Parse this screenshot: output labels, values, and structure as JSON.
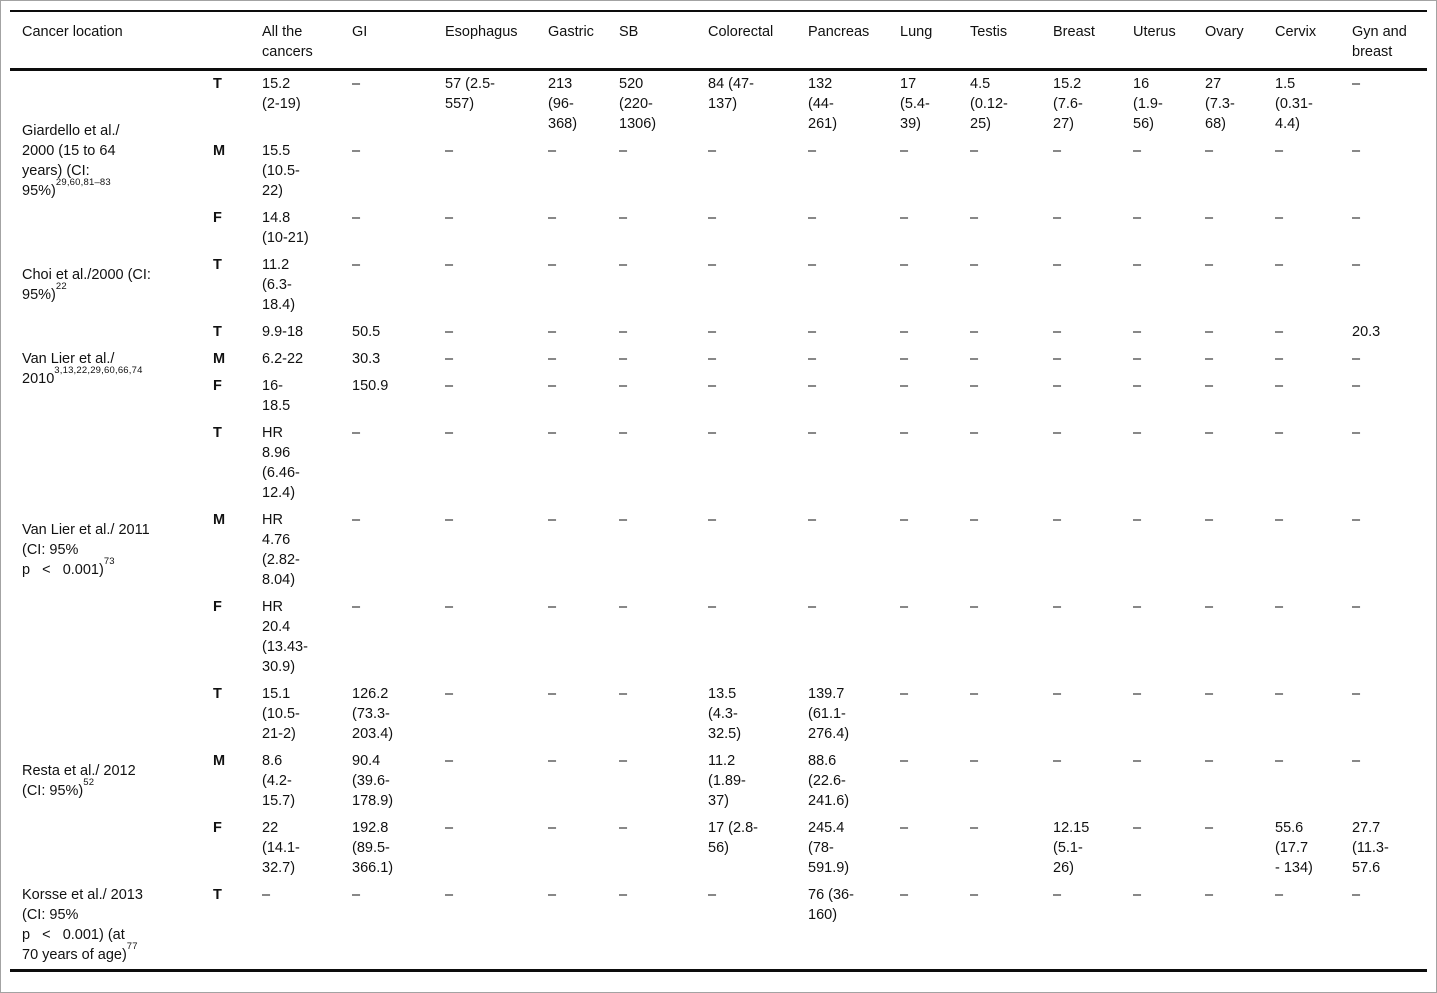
{
  "table": {
    "corner_header": "Cancer location",
    "columns": [
      "All the cancers",
      "GI",
      "Esophagus",
      "Gastric",
      "SB",
      "Colorectal",
      "Pancreas",
      "Lung",
      "Testis",
      "Breast",
      "Uterus",
      "Ovary",
      "Cervix",
      "Gyn and breast"
    ],
    "groups": [
      {
        "label_lines": [
          "Giardello et al./",
          "2000 (15 to 64",
          "years) (CI:",
          "95%)"
        ],
        "sup": "29,60,81–83",
        "rows": [
          {
            "sex": "T",
            "values": [
              "15.2 (2-19)",
              "–",
              "57 (2.5-557)",
              "213 (96-368)",
              "520 (220-1306)",
              "84 (47-137)",
              "132 (44-261)",
              "17 (5.4-39)",
              "4.5 (0.12-25)",
              "15.2 (7.6-27)",
              "16 (1.9-56)",
              "27 (7.3-68)",
              "1.5 (0.31-4.4)",
              "–"
            ]
          },
          {
            "sex": "M",
            "values": [
              "15.5 (10.5-22)",
              "–",
              "–",
              "–",
              "–",
              "–",
              "–",
              "–",
              "–",
              "–",
              "–",
              "–",
              "–",
              "–"
            ]
          },
          {
            "sex": "F",
            "values": [
              "14.8 (10-21)",
              "–",
              "–",
              "–",
              "–",
              "–",
              "–",
              "–",
              "–",
              "–",
              "–",
              "–",
              "–",
              "–"
            ]
          }
        ]
      },
      {
        "label_lines": [
          "Choi et al./2000 (CI:",
          "95%)"
        ],
        "sup": "22",
        "rows": [
          {
            "sex": "T",
            "values": [
              "11.2 (6.3-18.4)",
              "–",
              "–",
              "–",
              "–",
              "–",
              "–",
              "–",
              "–",
              "–",
              "–",
              "–",
              "–",
              "–"
            ]
          }
        ]
      },
      {
        "label_lines": [
          "Van Lier et al./",
          "2010"
        ],
        "sup": "3,13,22,29,60,66,74",
        "rows": [
          {
            "sex": "T",
            "values": [
              "9.9-18",
              "50.5",
              "–",
              "–",
              "–",
              "–",
              "–",
              "–",
              "–",
              "–",
              "–",
              "–",
              "–",
              "20.3"
            ]
          },
          {
            "sex": "M",
            "values": [
              "6.2-22",
              "30.3",
              "–",
              "–",
              "–",
              "–",
              "–",
              "–",
              "–",
              "–",
              "–",
              "–",
              "–",
              "–"
            ]
          },
          {
            "sex": "F",
            "values": [
              "16-18.5",
              "150.9",
              "–",
              "–",
              "–",
              "–",
              "–",
              "–",
              "–",
              "–",
              "–",
              "–",
              "–",
              "–"
            ]
          }
        ]
      },
      {
        "label_lines": [
          "Van Lier et al./ 2011",
          "(CI: 95%",
          "p   <   0.001)"
        ],
        "sup": "73",
        "rows": [
          {
            "sex": "T",
            "values": [
              "HR 8.96 (6.46-12.4)",
              "–",
              "–",
              "–",
              "–",
              "–",
              "–",
              "–",
              "–",
              "–",
              "–",
              "–",
              "–",
              "–"
            ]
          },
          {
            "sex": "M",
            "values": [
              "HR 4.76 (2.82-8.04)",
              "–",
              "–",
              "–",
              "–",
              "–",
              "–",
              "–",
              "–",
              "–",
              "–",
              "–",
              "–",
              "–"
            ]
          },
          {
            "sex": "F",
            "values": [
              "HR 20.4 (13.43-30.9)",
              "–",
              "–",
              "–",
              "–",
              "–",
              "–",
              "–",
              "–",
              "–",
              "–",
              "–",
              "–",
              "–"
            ]
          }
        ]
      },
      {
        "label_lines": [
          "Resta et al./ 2012",
          "(CI: 95%)"
        ],
        "sup": "52",
        "rows": [
          {
            "sex": "T",
            "values": [
              "15.1 (10.5-21-2)",
              "126.2 (73.3-203.4)",
              "–",
              "–",
              "–",
              "13.5 (4.3-32.5)",
              "139.7 (61.1-276.4)",
              "–",
              "–",
              "–",
              "–",
              "–",
              "–",
              "–"
            ]
          },
          {
            "sex": "M",
            "values": [
              "8.6 (4.2-15.7)",
              "90.4 (39.6-178.9)",
              "–",
              "–",
              "–",
              "11.2 (1.89-37)",
              "88.6 (22.6-241.6)",
              "–",
              "–",
              "–",
              "–",
              "–",
              "–",
              "–"
            ]
          },
          {
            "sex": "F",
            "values": [
              "22 (14.1-32.7)",
              "192.8 (89.5-366.1)",
              "–",
              "–",
              "–",
              "17 (2.8-56)",
              "245.4 (78-591.9)",
              "–",
              "–",
              "12.15 (5.1-26)",
              "–",
              "–",
              "55.6 (17.7 - 134)",
              "27.7 (11.3-57.6"
            ]
          }
        ]
      },
      {
        "label_lines": [
          "Korsse et al./ 2013",
          "(CI: 95%",
          "p   <   0.001) (at",
          "70 years of age)"
        ],
        "sup": "77",
        "rows": [
          {
            "sex": "T",
            "values": [
              "–",
              "–",
              "–",
              "–",
              "–",
              "–",
              "76 (36-160)",
              "–",
              "–",
              "–",
              "–",
              "–",
              "–",
              "–"
            ]
          }
        ]
      }
    ]
  }
}
